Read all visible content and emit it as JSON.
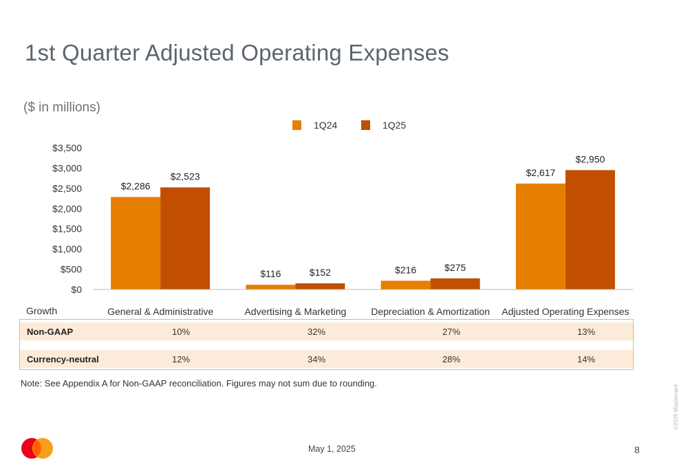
{
  "title": "1st Quarter Adjusted Operating Expenses",
  "subtitle": "($ in millions)",
  "chart_data": {
    "type": "bar",
    "categories": [
      "General & Administrative",
      "Advertising & Marketing",
      "Depreciation & Amortization",
      "Adjusted Operating Expenses"
    ],
    "series": [
      {
        "name": "1Q24",
        "values": [
          2286,
          116,
          216,
          2617
        ],
        "labels": [
          "$2,286",
          "$116",
          "$216",
          "$2,617"
        ],
        "color": "#e67e00"
      },
      {
        "name": "1Q25",
        "values": [
          2523,
          152,
          275,
          2950
        ],
        "labels": [
          "$2,523",
          "$152",
          "$275",
          "$2,950"
        ],
        "color": "#c24f00"
      }
    ],
    "ylim": [
      0,
      3500
    ],
    "yticks": [
      0,
      500,
      1000,
      1500,
      2000,
      2500,
      3000,
      3500
    ],
    "ytick_labels": [
      "$0",
      "$500",
      "$1,000",
      "$1,500",
      "$2,000",
      "$2,500",
      "$3,000",
      "$3,500"
    ],
    "legend_position": "top-center",
    "grid": false
  },
  "growth": {
    "label": "Growth",
    "rows": [
      {
        "label": "Non-GAAP",
        "values": [
          "10%",
          "32%",
          "27%",
          "13%"
        ]
      },
      {
        "label": "Currency-neutral",
        "values": [
          "12%",
          "34%",
          "28%",
          "14%"
        ]
      }
    ]
  },
  "note": "Note: See Appendix A for Non-GAAP reconciliation. Figures may not sum due to rounding.",
  "footer": {
    "date": "May 1, 2025",
    "page": "8",
    "copyright": "©2025 Mastercard"
  },
  "colors": {
    "logo_left": "#eb001b",
    "logo_right": "#f79e1b",
    "logo_overlap": "#ff5f00"
  }
}
